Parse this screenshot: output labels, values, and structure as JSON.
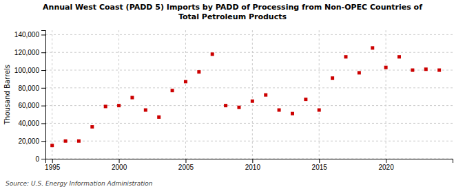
{
  "chart_data": {
    "type": "scatter",
    "title": "Annual West Coast (PADD 5) Imports by PADD of Processing from Non-OPEC Countries of\nTotal Petroleum Products",
    "ylabel": "Thousand Barrels",
    "source": "Source: U.S. Energy Information Administration",
    "color": "#cc0000",
    "marker": "square",
    "grid": true,
    "xlim": [
      1994.5,
      2025
    ],
    "ylim": [
      0,
      145000
    ],
    "xticks": [
      1995,
      2000,
      2005,
      2010,
      2015,
      2020
    ],
    "yticks": [
      0,
      {
        "value": 20000,
        "label": "20,000"
      },
      {
        "value": 40000,
        "label": "40,000"
      },
      {
        "value": 60000,
        "label": "60,000"
      },
      {
        "value": 80000,
        "label": "80,000"
      },
      {
        "value": 100000,
        "label": "100,000"
      },
      {
        "value": 120000,
        "label": "120,000"
      },
      {
        "value": 140000,
        "label": "140,000"
      }
    ],
    "x": [
      1995,
      1996,
      1997,
      1998,
      1999,
      2000,
      2001,
      2002,
      2003,
      2004,
      2005,
      2006,
      2007,
      2008,
      2009,
      2010,
      2011,
      2012,
      2013,
      2014,
      2015,
      2016,
      2017,
      2018,
      2019,
      2020,
      2021,
      2022,
      2023,
      2024
    ],
    "values": [
      15000,
      20000,
      20000,
      36000,
      59000,
      60000,
      69000,
      55000,
      47000,
      77000,
      87000,
      98000,
      118000,
      60000,
      58000,
      65000,
      72000,
      55000,
      51000,
      67000,
      55000,
      91000,
      115000,
      97000,
      125000,
      103000,
      115000,
      100000,
      101000,
      100000
    ]
  }
}
